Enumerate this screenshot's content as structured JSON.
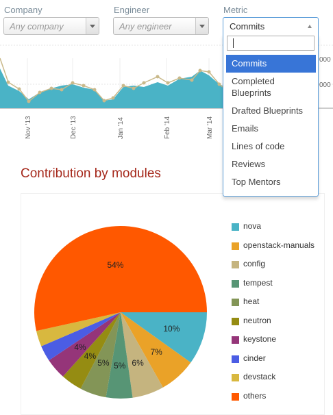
{
  "filters": {
    "company": {
      "label": "Company",
      "placeholder": "Any company"
    },
    "engineer": {
      "label": "Engineer",
      "placeholder": "Any engineer"
    },
    "metric": {
      "label": "Metric",
      "value": "Commits",
      "search_value": "",
      "options": [
        {
          "label": "Commits",
          "selected": true
        },
        {
          "label": "Completed Blueprints",
          "selected": false
        },
        {
          "label": "Drafted Blueprints",
          "selected": false
        },
        {
          "label": "Emails",
          "selected": false
        },
        {
          "label": "Lines of code",
          "selected": false
        },
        {
          "label": "Reviews",
          "selected": false
        },
        {
          "label": "Top Mentors",
          "selected": false
        }
      ]
    }
  },
  "timeline": {
    "type": "area",
    "area_color": "#4ab3c6",
    "line_color": "#c9b98a",
    "x_labels": [
      "Nov '13",
      "Dec '13",
      "Jan '14",
      "Feb '14",
      "Mar '14"
    ],
    "right_tick_labels": [
      "000",
      "000"
    ]
  },
  "section": {
    "title": "Contribution by modules"
  },
  "chart_data": {
    "type": "pie",
    "title": "",
    "slices": [
      {
        "name": "nova",
        "value": 10,
        "label": "10%",
        "color": "#4ab3c6"
      },
      {
        "name": "openstack-manuals",
        "value": 7,
        "label": "7%",
        "color": "#eaa228"
      },
      {
        "name": "config",
        "value": 6,
        "label": "6%",
        "color": "#c5b47f"
      },
      {
        "name": "tempest",
        "value": 5,
        "label": "5%",
        "color": "#579575"
      },
      {
        "name": "heat",
        "value": 5,
        "label": "5%",
        "color": "#839557"
      },
      {
        "name": "neutron",
        "value": 4,
        "label": "4%",
        "color": "#958c12"
      },
      {
        "name": "keystone",
        "value": 4,
        "label": "4%",
        "color": "#953579"
      },
      {
        "name": "cinder",
        "value": 3,
        "label": "",
        "color": "#4b5de4"
      },
      {
        "name": "devstack",
        "value": 3,
        "label": "",
        "color": "#d8b83f"
      },
      {
        "name": "others",
        "value": 54,
        "label": "54%",
        "color": "#ff5800"
      }
    ],
    "legend_position": "right"
  }
}
